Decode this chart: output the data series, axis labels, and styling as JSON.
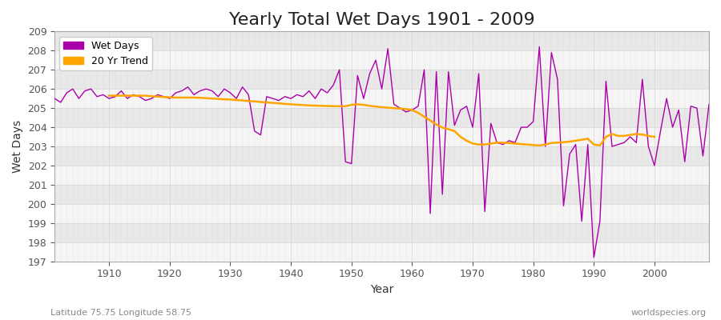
{
  "title": "Yearly Total Wet Days 1901 - 2009",
  "xlabel": "Year",
  "ylabel": "Wet Days",
  "lat_lon_label": "Latitude 75.75 Longitude 58.75",
  "watermark": "worldspecies.org",
  "years": [
    1901,
    1902,
    1903,
    1904,
    1905,
    1906,
    1907,
    1908,
    1909,
    1910,
    1911,
    1912,
    1913,
    1914,
    1915,
    1916,
    1917,
    1918,
    1919,
    1920,
    1921,
    1922,
    1923,
    1924,
    1925,
    1926,
    1927,
    1928,
    1929,
    1930,
    1931,
    1932,
    1933,
    1934,
    1935,
    1936,
    1937,
    1938,
    1939,
    1940,
    1941,
    1942,
    1943,
    1944,
    1945,
    1946,
    1947,
    1948,
    1949,
    1950,
    1951,
    1952,
    1953,
    1954,
    1955,
    1956,
    1957,
    1958,
    1959,
    1960,
    1961,
    1962,
    1963,
    1964,
    1965,
    1966,
    1967,
    1968,
    1969,
    1970,
    1971,
    1972,
    1973,
    1974,
    1975,
    1976,
    1977,
    1978,
    1979,
    1980,
    1981,
    1982,
    1983,
    1984,
    1985,
    1986,
    1987,
    1988,
    1989,
    1990,
    1991,
    1992,
    1993,
    1994,
    1995,
    1996,
    1997,
    1998,
    1999,
    2000,
    2001,
    2002,
    2003,
    2004,
    2005,
    2006,
    2007,
    2008,
    2009
  ],
  "wet_days": [
    205.5,
    205.3,
    205.8,
    206.0,
    205.5,
    205.9,
    206.0,
    205.6,
    205.7,
    205.5,
    205.6,
    205.9,
    205.5,
    205.7,
    205.6,
    205.4,
    205.5,
    205.7,
    205.6,
    205.5,
    205.8,
    205.9,
    206.1,
    205.7,
    205.9,
    206.0,
    205.9,
    205.6,
    206.0,
    205.8,
    205.5,
    206.1,
    205.7,
    203.8,
    203.6,
    205.6,
    205.5,
    205.4,
    205.6,
    205.5,
    205.7,
    205.6,
    205.9,
    205.5,
    206.0,
    205.8,
    206.2,
    207.0,
    202.2,
    202.1,
    206.7,
    205.5,
    206.8,
    207.5,
    206.0,
    208.1,
    205.2,
    205.0,
    204.8,
    204.9,
    205.1,
    207.0,
    199.5,
    206.9,
    200.5,
    206.9,
    204.1,
    204.9,
    205.1,
    204.0,
    206.8,
    199.6,
    204.2,
    203.2,
    203.1,
    203.3,
    203.2,
    204.0,
    204.0,
    204.3,
    208.2,
    203.0,
    207.9,
    206.5,
    199.9,
    202.6,
    203.1,
    199.1,
    203.1,
    197.2,
    199.1,
    206.4,
    203.0,
    203.1,
    203.2,
    203.5,
    203.2,
    206.5,
    203.0,
    202.0,
    203.8,
    205.5,
    204.0,
    204.9,
    202.2,
    205.1,
    205.0,
    202.5,
    205.2
  ],
  "trend_years": [
    1910,
    1911,
    1912,
    1913,
    1914,
    1915,
    1916,
    1917,
    1918,
    1919,
    1920,
    1921,
    1922,
    1923,
    1924,
    1925,
    1926,
    1927,
    1928,
    1929,
    1930,
    1931,
    1932,
    1933,
    1934,
    1935,
    1936,
    1937,
    1938,
    1939,
    1940,
    1941,
    1942,
    1943,
    1944,
    1945,
    1946,
    1947,
    1948,
    1949,
    1950,
    1951,
    1952,
    1953,
    1954,
    1955,
    1956,
    1957,
    1958,
    1959,
    1960,
    1961,
    1962,
    1963,
    1964,
    1965,
    1966,
    1967,
    1968,
    1969,
    1970,
    1971,
    1972,
    1973,
    1974,
    1975,
    1976,
    1977,
    1978,
    1979,
    1980,
    1981,
    1982,
    1983,
    1984,
    1985,
    1986,
    1987,
    1988,
    1989,
    1990,
    1991,
    1992,
    1993,
    1994,
    1995,
    1996,
    1997,
    1998,
    1999,
    2000
  ],
  "trend_values": [
    205.65,
    205.65,
    205.65,
    205.65,
    205.65,
    205.65,
    205.65,
    205.62,
    205.6,
    205.58,
    205.56,
    205.55,
    205.55,
    205.55,
    205.55,
    205.54,
    205.52,
    205.5,
    205.48,
    205.46,
    205.45,
    205.42,
    205.4,
    205.37,
    205.35,
    205.32,
    205.3,
    205.27,
    205.25,
    205.22,
    205.2,
    205.18,
    205.16,
    205.14,
    205.13,
    205.12,
    205.11,
    205.1,
    205.1,
    205.1,
    205.17,
    205.2,
    205.17,
    205.12,
    205.08,
    205.05,
    205.02,
    205.0,
    204.98,
    204.95,
    204.9,
    204.75,
    204.55,
    204.35,
    204.15,
    203.98,
    203.9,
    203.8,
    203.5,
    203.3,
    203.15,
    203.1,
    203.1,
    203.15,
    203.2,
    203.2,
    203.18,
    203.15,
    203.12,
    203.1,
    203.07,
    203.05,
    203.1,
    203.18,
    203.2,
    203.22,
    203.25,
    203.3,
    203.35,
    203.4,
    203.1,
    203.05,
    203.5,
    203.65,
    203.55,
    203.55,
    203.6,
    203.65,
    203.62,
    203.55,
    203.5
  ],
  "wet_days_color": "#AA00AA",
  "trend_color": "#FFA500",
  "background_color": "#FFFFFF",
  "plot_bg_color": "#F0F0F0",
  "band_color_light": "#F5F5F5",
  "band_color_dark": "#E8E8E8",
  "grid_color": "#CCCCCC",
  "ylim": [
    197,
    209
  ],
  "xlim": [
    1901,
    2009
  ],
  "yticks": [
    197,
    198,
    199,
    200,
    201,
    202,
    203,
    204,
    205,
    206,
    207,
    208,
    209
  ],
  "xticks": [
    1910,
    1920,
    1930,
    1940,
    1950,
    1960,
    1970,
    1980,
    1990,
    2000
  ],
  "title_fontsize": 16,
  "axis_label_fontsize": 10,
  "tick_fontsize": 9,
  "legend_fontsize": 9,
  "watermark_fontsize": 8,
  "lat_lon_fontsize": 8
}
